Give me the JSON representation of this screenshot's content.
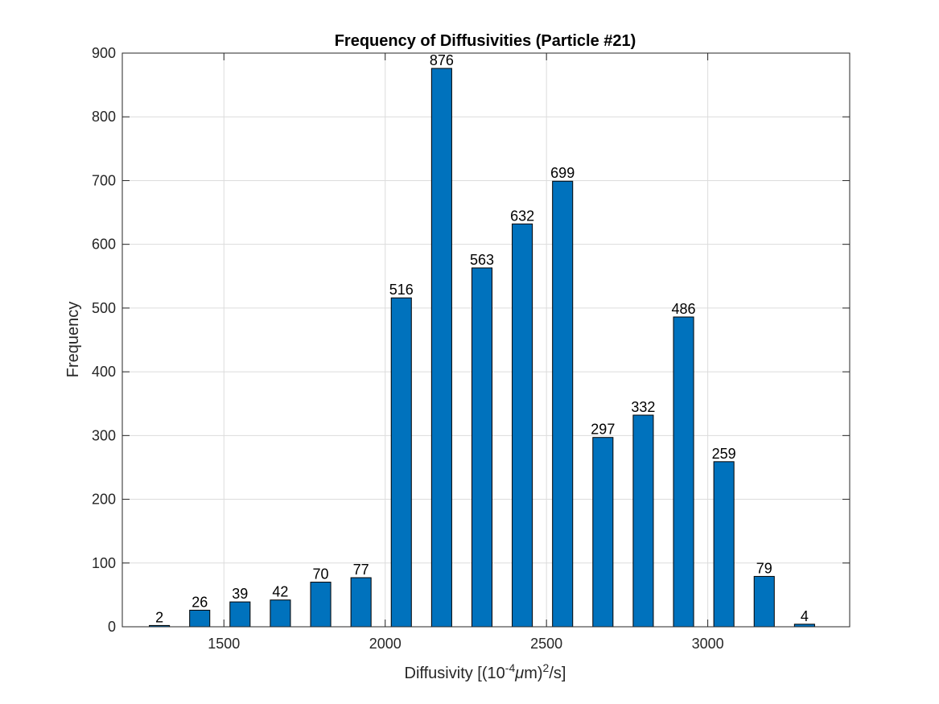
{
  "chart_data": {
    "type": "bar",
    "title": "Frequency of Diffusivities (Particle #21)",
    "xlabel": {
      "prefix": "Diffusivity [(10",
      "sup1": "-4",
      "mu": "μ",
      "mid": "m)",
      "sup2": "2",
      "suffix": "/s]"
    },
    "ylabel": "Frequency",
    "x": [
      1300,
      1425,
      1550,
      1675,
      1800,
      1925,
      2050,
      2175,
      2300,
      2425,
      2550,
      2675,
      2800,
      2925,
      3050,
      3175,
      3300
    ],
    "values": [
      2,
      26,
      39,
      42,
      70,
      77,
      516,
      876,
      563,
      632,
      699,
      297,
      332,
      486,
      259,
      79,
      4
    ],
    "data_labels": [
      "2",
      "26",
      "39",
      "42",
      "70",
      "77",
      "516",
      "876",
      "563",
      "632",
      "699",
      "297",
      "332",
      "486",
      "259",
      "79",
      "4"
    ],
    "bar_width": 62.5,
    "xlim": [
      1185,
      3440
    ],
    "ylim": [
      0,
      900
    ],
    "xticks": [
      1500,
      2000,
      2500,
      3000
    ],
    "xtick_labels": [
      "1500",
      "2000",
      "2500",
      "3000"
    ],
    "yticks": [
      0,
      100,
      200,
      300,
      400,
      500,
      600,
      700,
      800,
      900
    ],
    "ytick_labels": [
      "0",
      "100",
      "200",
      "300",
      "400",
      "500",
      "600",
      "700",
      "800",
      "900"
    ],
    "grid": true,
    "bar_color": "#0072BD",
    "bar_edge_color": "#000000"
  }
}
